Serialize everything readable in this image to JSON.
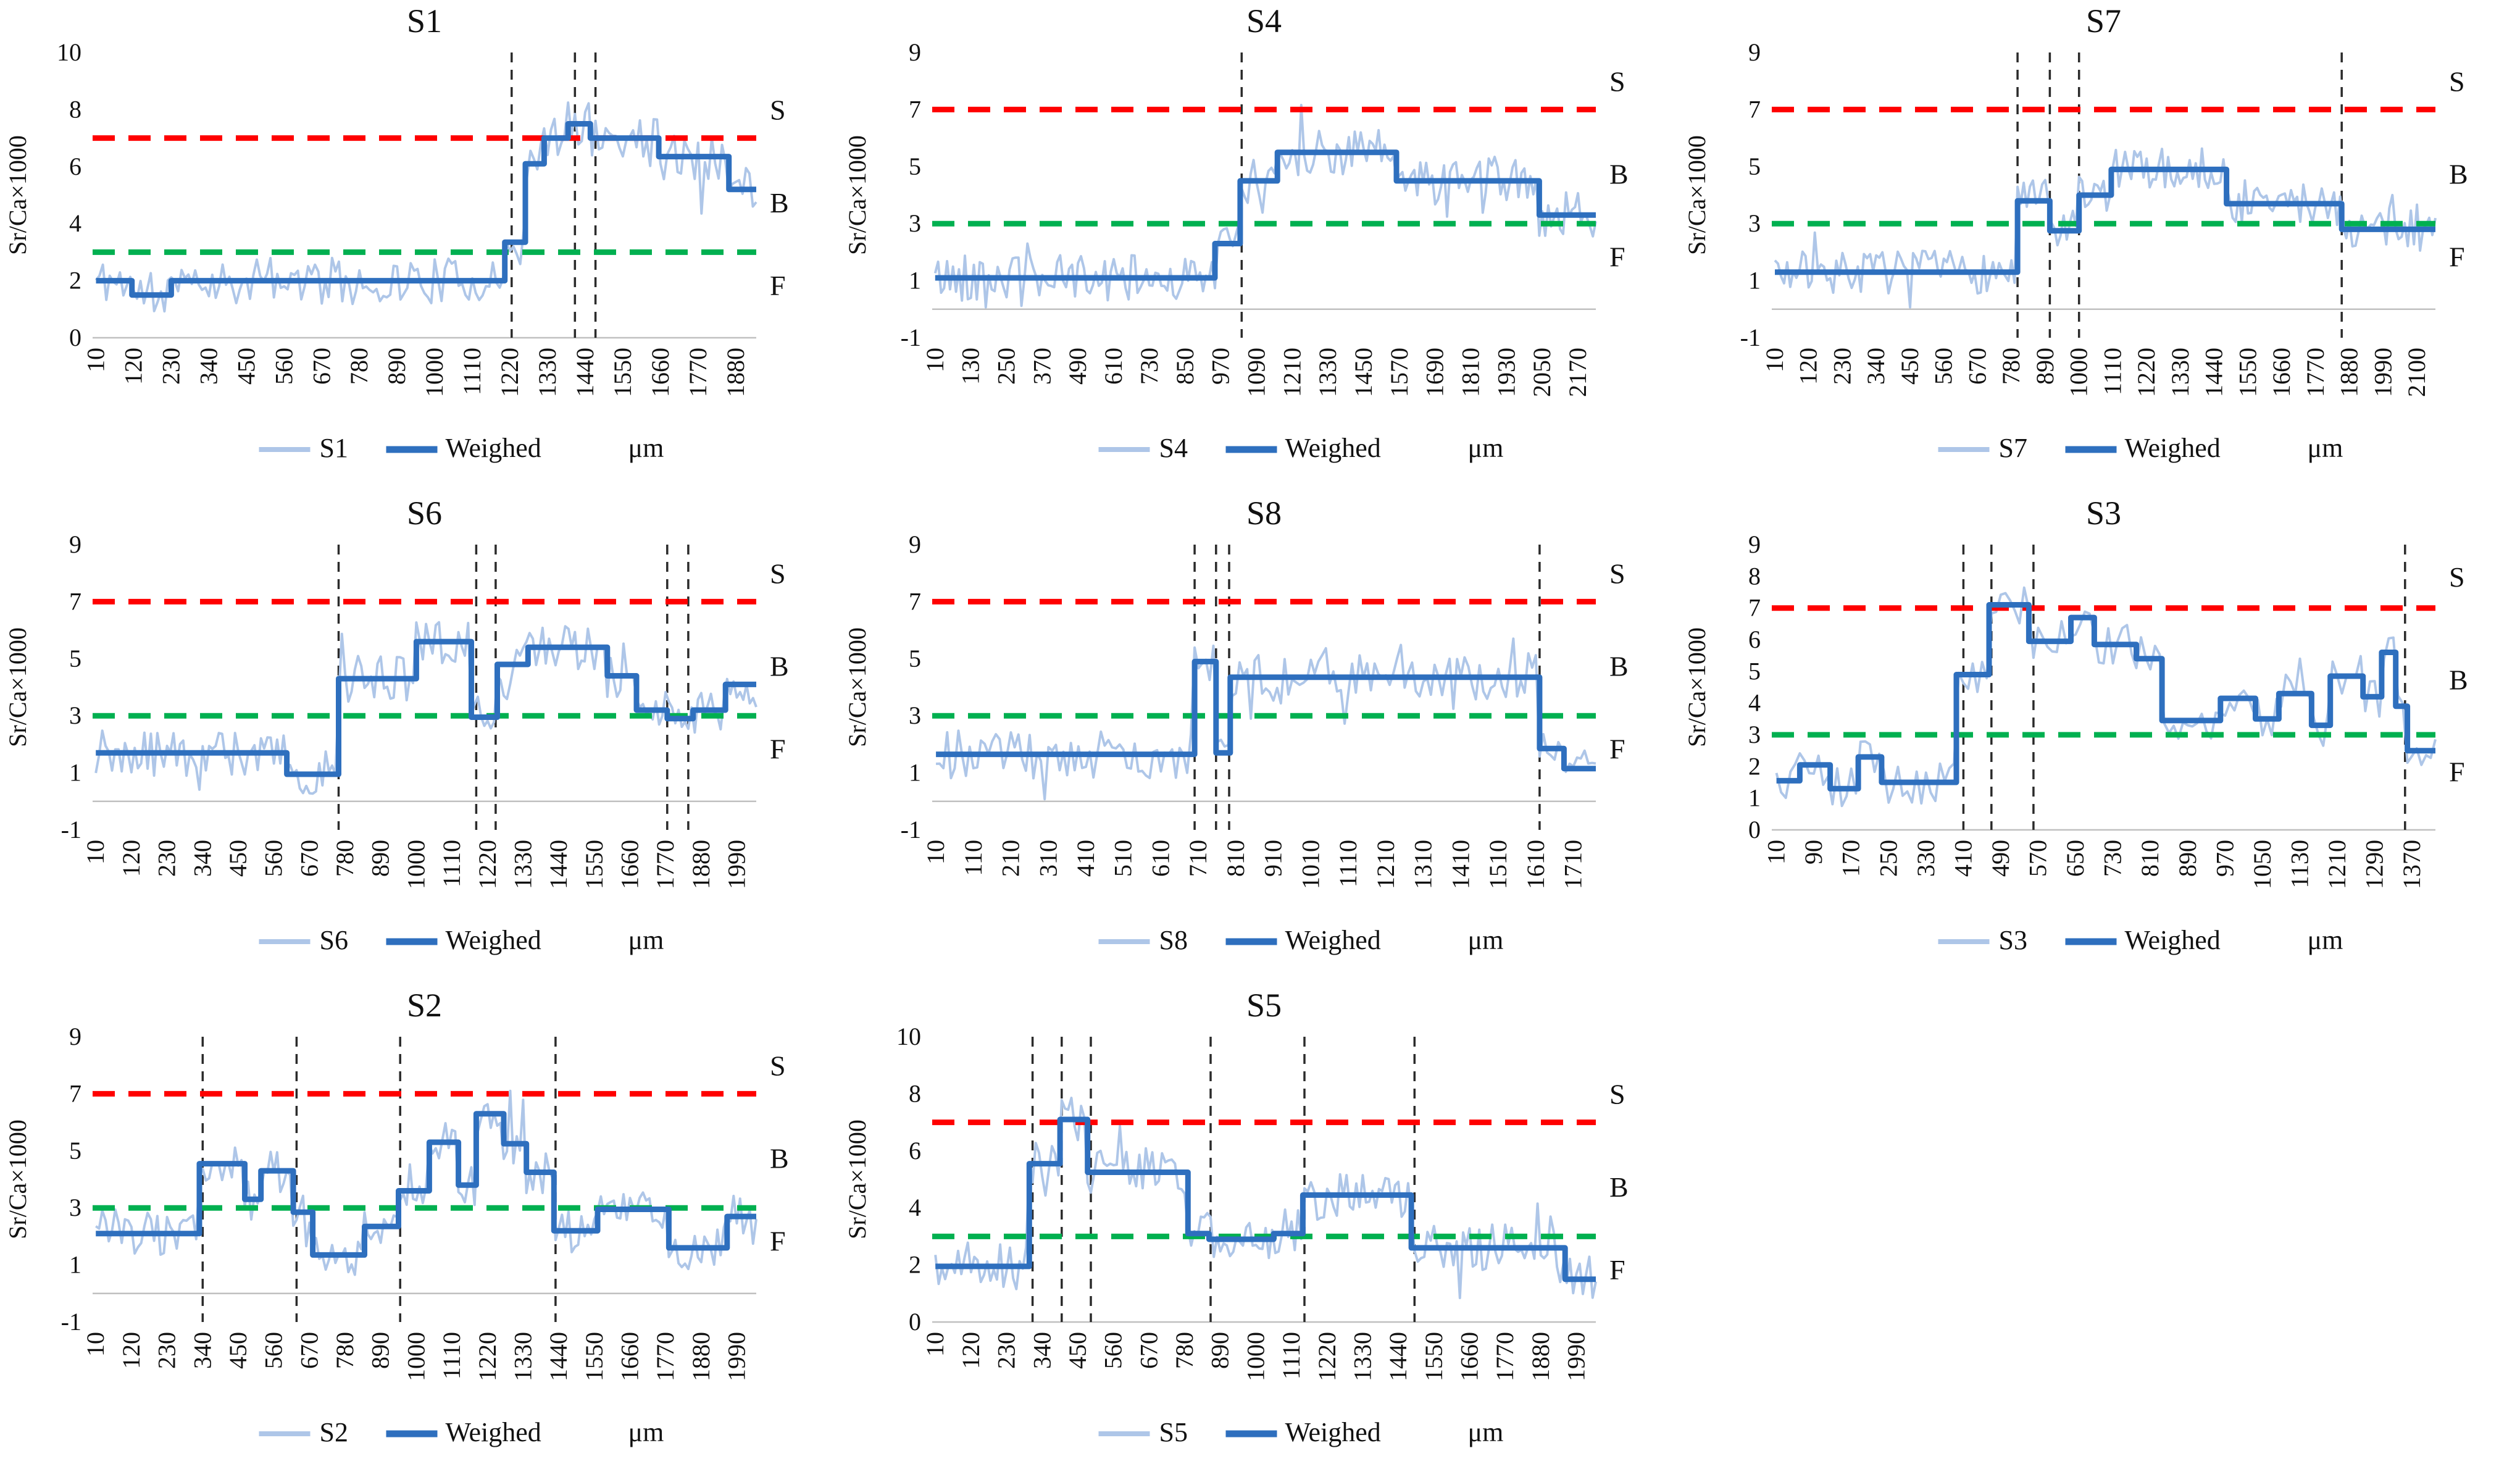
{
  "figure": {
    "description": "Eight Sr/Ca x1000 line-profile subplots (S1..S8) with raw series, weighed step series, red salinity threshold, green freshwater threshold, vertical transition lines and zone labels",
    "ylabel": "Sr/Ca×1000",
    "xlabel": "μm",
    "weighed_label": "Weighed",
    "zone_labels": {
      "top": "S",
      "mid": "B",
      "bottom": "F"
    }
  },
  "colors": {
    "raw": "#aec6e8",
    "weighed": "#2e6fbe",
    "red_line": "#ff0000",
    "green_line": "#00b050",
    "vline": "#2b2b2b",
    "axis": "#c0c0c0",
    "text": "#111111"
  },
  "chart_data": [
    {
      "type": "line",
      "title": "S1",
      "series_label": "S1",
      "ylim": [
        0,
        10
      ],
      "yticks": [
        0,
        2,
        4,
        6,
        8,
        10
      ],
      "xticks": [
        10,
        120,
        230,
        340,
        450,
        560,
        670,
        780,
        890,
        1000,
        1110,
        1220,
        1330,
        1440,
        1550,
        1660,
        1770,
        1880
      ],
      "xmax": 1940,
      "threshold_S": 7,
      "threshold_F": 3,
      "vlines": [
        1225,
        1410,
        1470
      ],
      "weighed_steps": [
        [
          10,
          115,
          2.0
        ],
        [
          115,
          230,
          1.5
        ],
        [
          230,
          1205,
          2.0
        ],
        [
          1205,
          1265,
          3.35
        ],
        [
          1265,
          1320,
          6.1
        ],
        [
          1320,
          1390,
          7.0
        ],
        [
          1390,
          1455,
          7.5
        ],
        [
          1455,
          1655,
          7.0
        ],
        [
          1655,
          1860,
          6.35
        ],
        [
          1860,
          1940,
          5.2
        ]
      ],
      "noise_amp": 0.8,
      "noise_seed": 11
    },
    {
      "type": "line",
      "title": "S4",
      "series_label": "S4",
      "ylim": [
        -1,
        9
      ],
      "yticks": [
        -1,
        1,
        3,
        5,
        7,
        9
      ],
      "xticks": [
        10,
        130,
        250,
        370,
        490,
        610,
        730,
        850,
        970,
        1090,
        1210,
        1330,
        1450,
        1570,
        1690,
        1810,
        1930,
        2050,
        2170
      ],
      "xmax": 2230,
      "threshold_S": 7,
      "threshold_F": 3,
      "vlines": [
        1040
      ],
      "weighed_steps": [
        [
          10,
          950,
          1.1
        ],
        [
          950,
          1035,
          2.3
        ],
        [
          1035,
          1160,
          4.5
        ],
        [
          1160,
          1560,
          5.5
        ],
        [
          1560,
          2040,
          4.5
        ],
        [
          2040,
          2230,
          3.3
        ]
      ],
      "noise_amp": 0.8,
      "noise_seed": 42
    },
    {
      "type": "line",
      "title": "S7",
      "series_label": "S7",
      "ylim": [
        -1,
        9
      ],
      "yticks": [
        -1,
        1,
        3,
        5,
        7,
        9
      ],
      "xticks": [
        10,
        120,
        230,
        340,
        450,
        560,
        670,
        780,
        890,
        1000,
        1110,
        1220,
        1330,
        1440,
        1550,
        1660,
        1770,
        1880,
        1990,
        2100
      ],
      "xmax": 2160,
      "threshold_S": 7,
      "threshold_F": 3,
      "vlines": [
        800,
        905,
        1000,
        1855
      ],
      "weighed_steps": [
        [
          10,
          800,
          1.3
        ],
        [
          800,
          905,
          3.8
        ],
        [
          905,
          1000,
          2.75
        ],
        [
          1000,
          1105,
          4.0
        ],
        [
          1105,
          1480,
          4.9
        ],
        [
          1480,
          1855,
          3.7
        ],
        [
          1855,
          2160,
          2.8
        ]
      ],
      "noise_amp": 0.75,
      "noise_seed": 7
    },
    {
      "type": "line",
      "title": "S6",
      "series_label": "S6",
      "ylim": [
        -1,
        9
      ],
      "yticks": [
        -1,
        1,
        3,
        5,
        7,
        9
      ],
      "xticks": [
        10,
        120,
        230,
        340,
        450,
        560,
        670,
        780,
        890,
        1000,
        1110,
        1220,
        1330,
        1440,
        1550,
        1660,
        1770,
        1880,
        1990
      ],
      "xmax": 2050,
      "threshold_S": 7,
      "threshold_F": 3,
      "vlines": [
        760,
        1185,
        1245,
        1775,
        1840
      ],
      "weighed_steps": [
        [
          10,
          600,
          1.7
        ],
        [
          600,
          760,
          0.95
        ],
        [
          760,
          1000,
          4.3
        ],
        [
          1000,
          1170,
          5.6
        ],
        [
          1170,
          1250,
          2.95
        ],
        [
          1250,
          1345,
          4.8
        ],
        [
          1345,
          1590,
          5.4
        ],
        [
          1590,
          1680,
          4.4
        ],
        [
          1680,
          1775,
          3.2
        ],
        [
          1775,
          1855,
          2.9
        ],
        [
          1855,
          1955,
          3.2
        ],
        [
          1955,
          2050,
          4.1
        ]
      ],
      "noise_amp": 0.8,
      "noise_seed": 19
    },
    {
      "type": "line",
      "title": "S8",
      "series_label": "S8",
      "ylim": [
        -1,
        9
      ],
      "yticks": [
        -1,
        1,
        3,
        5,
        7,
        9
      ],
      "xticks": [
        10,
        110,
        210,
        310,
        410,
        510,
        610,
        710,
        810,
        910,
        1010,
        1110,
        1210,
        1310,
        1410,
        1510,
        1610,
        1710
      ],
      "xmax": 1770,
      "threshold_S": 7,
      "threshold_F": 3,
      "vlines": [
        700,
        757,
        792,
        1620
      ],
      "weighed_steps": [
        [
          10,
          700,
          1.65
        ],
        [
          700,
          757,
          4.9
        ],
        [
          757,
          795,
          1.7
        ],
        [
          795,
          1620,
          4.35
        ],
        [
          1620,
          1685,
          1.85
        ],
        [
          1685,
          1770,
          1.15
        ]
      ],
      "noise_amp": 0.85,
      "noise_seed": 23
    },
    {
      "type": "line",
      "title": "S3",
      "series_label": "S3",
      "ylim": [
        0,
        9
      ],
      "yticks": [
        0,
        1,
        2,
        3,
        4,
        5,
        6,
        7,
        8,
        9
      ],
      "xticks": [
        10,
        90,
        170,
        250,
        330,
        410,
        490,
        570,
        650,
        730,
        810,
        890,
        970,
        1050,
        1130,
        1210,
        1290,
        1370
      ],
      "xmax": 1420,
      "threshold_S": 7,
      "threshold_F": 3,
      "vlines": [
        410,
        470,
        560,
        1355
      ],
      "weighed_steps": [
        [
          10,
          60,
          1.55
        ],
        [
          60,
          125,
          2.05
        ],
        [
          125,
          185,
          1.3
        ],
        [
          185,
          235,
          2.3
        ],
        [
          235,
          395,
          1.5
        ],
        [
          395,
          465,
          4.9
        ],
        [
          465,
          550,
          7.1
        ],
        [
          550,
          640,
          5.95
        ],
        [
          640,
          690,
          6.7
        ],
        [
          690,
          780,
          5.85
        ],
        [
          780,
          835,
          5.4
        ],
        [
          835,
          960,
          3.45
        ],
        [
          960,
          1035,
          4.15
        ],
        [
          1035,
          1085,
          3.5
        ],
        [
          1085,
          1155,
          4.3
        ],
        [
          1155,
          1195,
          3.3
        ],
        [
          1195,
          1265,
          4.85
        ],
        [
          1265,
          1305,
          4.2
        ],
        [
          1305,
          1335,
          5.6
        ],
        [
          1335,
          1360,
          3.9
        ],
        [
          1360,
          1420,
          2.5
        ]
      ],
      "noise_amp": 0.65,
      "noise_seed": 5
    },
    {
      "type": "line",
      "title": "S2",
      "series_label": "S2",
      "ylim": [
        -1,
        9
      ],
      "yticks": [
        -1,
        1,
        3,
        5,
        7,
        9
      ],
      "xticks": [
        10,
        120,
        230,
        340,
        450,
        560,
        670,
        780,
        890,
        1000,
        1110,
        1220,
        1330,
        1440,
        1550,
        1660,
        1770,
        1880,
        1990
      ],
      "xmax": 2050,
      "threshold_S": 7,
      "threshold_F": 3,
      "vlines": [
        340,
        630,
        950,
        1430
      ],
      "weighed_steps": [
        [
          10,
          330,
          2.1
        ],
        [
          330,
          470,
          4.55
        ],
        [
          470,
          520,
          3.3
        ],
        [
          520,
          620,
          4.3
        ],
        [
          620,
          680,
          2.85
        ],
        [
          680,
          840,
          1.35
        ],
        [
          840,
          945,
          2.35
        ],
        [
          945,
          1040,
          3.6
        ],
        [
          1040,
          1130,
          5.3
        ],
        [
          1130,
          1185,
          3.8
        ],
        [
          1185,
          1270,
          6.3
        ],
        [
          1270,
          1340,
          5.25
        ],
        [
          1340,
          1425,
          4.25
        ],
        [
          1425,
          1560,
          2.2
        ],
        [
          1560,
          1780,
          2.95
        ],
        [
          1780,
          1960,
          1.6
        ],
        [
          1960,
          2050,
          2.7
        ]
      ],
      "noise_amp": 0.75,
      "noise_seed": 31
    },
    {
      "type": "line",
      "title": "S5",
      "series_label": "S5",
      "ylim": [
        0,
        10
      ],
      "yticks": [
        0,
        2,
        4,
        6,
        8,
        10
      ],
      "xticks": [
        10,
        120,
        230,
        340,
        450,
        560,
        670,
        780,
        890,
        1000,
        1110,
        1220,
        1330,
        1440,
        1550,
        1660,
        1770,
        1880,
        1990
      ],
      "xmax": 2050,
      "threshold_S": 7,
      "threshold_F": 3,
      "vlines": [
        310,
        400,
        490,
        860,
        1150,
        1490
      ],
      "weighed_steps": [
        [
          10,
          300,
          1.95
        ],
        [
          300,
          395,
          5.55
        ],
        [
          395,
          480,
          7.1
        ],
        [
          480,
          790,
          5.25
        ],
        [
          790,
          855,
          3.1
        ],
        [
          855,
          1055,
          2.9
        ],
        [
          1055,
          1145,
          3.1
        ],
        [
          1145,
          1480,
          4.45
        ],
        [
          1480,
          1955,
          2.6
        ],
        [
          1955,
          2050,
          1.5
        ]
      ],
      "noise_amp": 0.85,
      "noise_seed": 57
    }
  ]
}
